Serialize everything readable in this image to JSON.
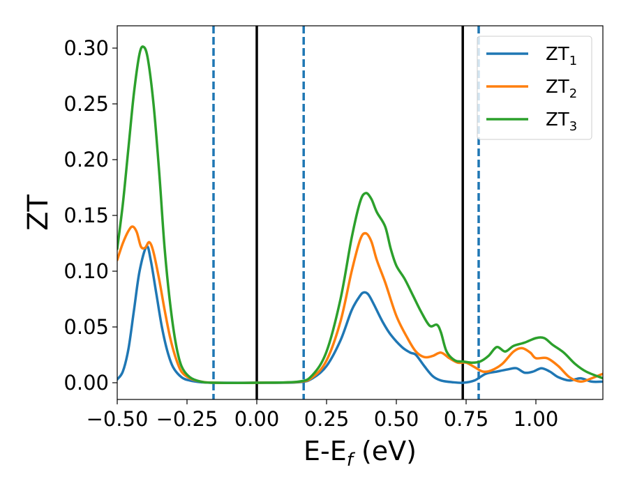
{
  "chart_data": {
    "type": "line",
    "title": "",
    "xlabel": {
      "base": "E-E",
      "sub": "f",
      "suffix": " (eV)"
    },
    "ylabel": "ZT",
    "xlim": [
      -0.5,
      1.24
    ],
    "ylim": [
      -0.015,
      0.32
    ],
    "x_ticks": [
      -0.5,
      -0.25,
      0.0,
      0.25,
      0.5,
      0.75,
      1.0
    ],
    "x_tick_labels": [
      "−0.50",
      "−0.25",
      "0.00",
      "0.25",
      "0.50",
      "0.75",
      "1.00"
    ],
    "y_ticks": [
      0.0,
      0.05,
      0.1,
      0.15,
      0.2,
      0.25,
      0.3
    ],
    "y_tick_labels": [
      "0.00",
      "0.05",
      "0.10",
      "0.15",
      "0.20",
      "0.25",
      "0.30"
    ],
    "grid": false,
    "legend_position": "top-right",
    "vertical_lines": [
      {
        "x": -0.155,
        "style": "dashed",
        "color": "#1f77b4"
      },
      {
        "x": 0.0,
        "style": "solid",
        "color": "#000000"
      },
      {
        "x": 0.168,
        "style": "dashed",
        "color": "#1f77b4"
      },
      {
        "x": 0.738,
        "style": "solid",
        "color": "#000000"
      },
      {
        "x": 0.795,
        "style": "dashed",
        "color": "#1f77b4"
      }
    ],
    "series": [
      {
        "name": "ZT",
        "sub": "1",
        "color": "#1f77b4",
        "points": [
          [
            -0.5,
            0.003
          ],
          [
            -0.48,
            0.01
          ],
          [
            -0.46,
            0.03
          ],
          [
            -0.44,
            0.065
          ],
          [
            -0.42,
            0.1
          ],
          [
            -0.395,
            0.122
          ],
          [
            -0.38,
            0.11
          ],
          [
            -0.36,
            0.08
          ],
          [
            -0.34,
            0.05
          ],
          [
            -0.32,
            0.028
          ],
          [
            -0.3,
            0.014
          ],
          [
            -0.27,
            0.005
          ],
          [
            -0.24,
            0.002
          ],
          [
            -0.2,
            0.0005
          ],
          [
            -0.15,
            0.0
          ],
          [
            0.0,
            0.0
          ],
          [
            0.15,
            0.0005
          ],
          [
            0.2,
            0.004
          ],
          [
            0.25,
            0.015
          ],
          [
            0.3,
            0.038
          ],
          [
            0.34,
            0.065
          ],
          [
            0.37,
            0.078
          ],
          [
            0.385,
            0.081
          ],
          [
            0.4,
            0.079
          ],
          [
            0.42,
            0.07
          ],
          [
            0.45,
            0.055
          ],
          [
            0.48,
            0.043
          ],
          [
            0.52,
            0.032
          ],
          [
            0.55,
            0.027
          ],
          [
            0.57,
            0.025
          ],
          [
            0.6,
            0.015
          ],
          [
            0.63,
            0.006
          ],
          [
            0.66,
            0.002
          ],
          [
            0.7,
            0.0005
          ],
          [
            0.74,
            0.0
          ],
          [
            0.78,
            0.002
          ],
          [
            0.82,
            0.008
          ],
          [
            0.86,
            0.01
          ],
          [
            0.9,
            0.012
          ],
          [
            0.93,
            0.013
          ],
          [
            0.96,
            0.009
          ],
          [
            0.99,
            0.01
          ],
          [
            1.02,
            0.013
          ],
          [
            1.05,
            0.01
          ],
          [
            1.08,
            0.005
          ],
          [
            1.12,
            0.002
          ],
          [
            1.16,
            0.004
          ],
          [
            1.2,
            0.001
          ],
          [
            1.24,
            0.001
          ]
        ]
      },
      {
        "name": "ZT",
        "sub": "2",
        "color": "#ff7f0e",
        "points": [
          [
            -0.5,
            0.11
          ],
          [
            -0.48,
            0.125
          ],
          [
            -0.46,
            0.136
          ],
          [
            -0.445,
            0.14
          ],
          [
            -0.43,
            0.135
          ],
          [
            -0.415,
            0.122
          ],
          [
            -0.4,
            0.121
          ],
          [
            -0.385,
            0.126
          ],
          [
            -0.37,
            0.117
          ],
          [
            -0.35,
            0.093
          ],
          [
            -0.33,
            0.065
          ],
          [
            -0.31,
            0.04
          ],
          [
            -0.29,
            0.022
          ],
          [
            -0.27,
            0.01
          ],
          [
            -0.24,
            0.004
          ],
          [
            -0.2,
            0.001
          ],
          [
            -0.15,
            0.0
          ],
          [
            0.0,
            0.0
          ],
          [
            0.15,
            0.0008
          ],
          [
            0.2,
            0.005
          ],
          [
            0.25,
            0.02
          ],
          [
            0.3,
            0.055
          ],
          [
            0.34,
            0.1
          ],
          [
            0.37,
            0.128
          ],
          [
            0.39,
            0.134
          ],
          [
            0.41,
            0.127
          ],
          [
            0.43,
            0.11
          ],
          [
            0.46,
            0.09
          ],
          [
            0.5,
            0.06
          ],
          [
            0.54,
            0.04
          ],
          [
            0.57,
            0.028
          ],
          [
            0.6,
            0.023
          ],
          [
            0.63,
            0.024
          ],
          [
            0.66,
            0.027
          ],
          [
            0.69,
            0.022
          ],
          [
            0.72,
            0.018
          ],
          [
            0.75,
            0.018
          ],
          [
            0.78,
            0.014
          ],
          [
            0.81,
            0.01
          ],
          [
            0.84,
            0.011
          ],
          [
            0.88,
            0.017
          ],
          [
            0.92,
            0.028
          ],
          [
            0.95,
            0.031
          ],
          [
            0.98,
            0.027
          ],
          [
            1.0,
            0.022
          ],
          [
            1.04,
            0.022
          ],
          [
            1.08,
            0.015
          ],
          [
            1.12,
            0.005
          ],
          [
            1.16,
            0.001
          ],
          [
            1.2,
            0.004
          ],
          [
            1.24,
            0.008
          ]
        ]
      },
      {
        "name": "ZT",
        "sub": "3",
        "color": "#2ca02c",
        "points": [
          [
            -0.5,
            0.12
          ],
          [
            -0.48,
            0.16
          ],
          [
            -0.46,
            0.21
          ],
          [
            -0.44,
            0.26
          ],
          [
            -0.42,
            0.295
          ],
          [
            -0.405,
            0.301
          ],
          [
            -0.39,
            0.29
          ],
          [
            -0.37,
            0.25
          ],
          [
            -0.35,
            0.19
          ],
          [
            -0.33,
            0.12
          ],
          [
            -0.31,
            0.07
          ],
          [
            -0.29,
            0.035
          ],
          [
            -0.27,
            0.015
          ],
          [
            -0.24,
            0.005
          ],
          [
            -0.2,
            0.001
          ],
          [
            -0.15,
            0.0
          ],
          [
            0.0,
            0.0
          ],
          [
            0.15,
            0.001
          ],
          [
            0.2,
            0.007
          ],
          [
            0.25,
            0.028
          ],
          [
            0.3,
            0.075
          ],
          [
            0.34,
            0.13
          ],
          [
            0.37,
            0.162
          ],
          [
            0.39,
            0.17
          ],
          [
            0.41,
            0.165
          ],
          [
            0.43,
            0.153
          ],
          [
            0.46,
            0.14
          ],
          [
            0.48,
            0.12
          ],
          [
            0.5,
            0.105
          ],
          [
            0.53,
            0.093
          ],
          [
            0.56,
            0.078
          ],
          [
            0.59,
            0.063
          ],
          [
            0.62,
            0.051
          ],
          [
            0.645,
            0.052
          ],
          [
            0.66,
            0.045
          ],
          [
            0.68,
            0.028
          ],
          [
            0.71,
            0.02
          ],
          [
            0.74,
            0.019
          ],
          [
            0.77,
            0.018
          ],
          [
            0.8,
            0.019
          ],
          [
            0.83,
            0.024
          ],
          [
            0.86,
            0.032
          ],
          [
            0.89,
            0.028
          ],
          [
            0.92,
            0.033
          ],
          [
            0.96,
            0.036
          ],
          [
            1.0,
            0.04
          ],
          [
            1.03,
            0.04
          ],
          [
            1.06,
            0.034
          ],
          [
            1.1,
            0.027
          ],
          [
            1.14,
            0.017
          ],
          [
            1.18,
            0.01
          ],
          [
            1.24,
            0.004
          ]
        ]
      }
    ]
  }
}
